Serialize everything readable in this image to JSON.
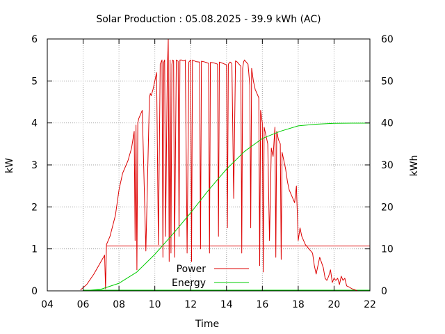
{
  "chart_data": {
    "type": "line",
    "title": "Solar Production : 05.08.2025 - 39.9 kWh (AC)",
    "xlabel": "Time",
    "ylabel": "kW",
    "y2label": "kWh",
    "xlim": [
      4,
      22
    ],
    "ylim": [
      0,
      6
    ],
    "y2lim": [
      0,
      60
    ],
    "x_ticks": [
      "04",
      "06",
      "08",
      "10",
      "12",
      "14",
      "16",
      "18",
      "20",
      "22"
    ],
    "y_ticks": [
      "0",
      "1",
      "2",
      "3",
      "4",
      "5",
      "6"
    ],
    "y2_ticks": [
      "0",
      "10",
      "20",
      "30",
      "40",
      "50",
      "60"
    ],
    "grid": true,
    "legend_position": "bottom-left",
    "reference_line": {
      "y": 1.07,
      "color": "#dd0000"
    },
    "baseline": {
      "y2": 0.0,
      "color": "#00cc00"
    },
    "series": [
      {
        "name": "Power",
        "axis": "y",
        "color": "#dd0000",
        "x": [
          5.85,
          6.2,
          6.6,
          7.0,
          7.2,
          7.25,
          7.3,
          7.5,
          7.8,
          8.0,
          8.2,
          8.5,
          8.7,
          8.85,
          8.9,
          8.95,
          9.0,
          9.05,
          9.1,
          9.2,
          9.3,
          9.5,
          9.7,
          9.75,
          9.8,
          9.9,
          10.0,
          10.1,
          10.2,
          10.3,
          10.4,
          10.45,
          10.5,
          10.55,
          10.6,
          10.7,
          10.75,
          10.8,
          10.85,
          10.9,
          10.95,
          11.0,
          11.05,
          11.1,
          11.2,
          11.3,
          11.35,
          11.4,
          11.5,
          11.6,
          11.7,
          11.8,
          11.9,
          12.0,
          12.05,
          12.1,
          12.3,
          12.5,
          12.55,
          12.6,
          12.8,
          13.0,
          13.05,
          13.1,
          13.3,
          13.5,
          13.55,
          13.6,
          13.8,
          13.9,
          14.0,
          14.05,
          14.1,
          14.2,
          14.3,
          14.4,
          14.5,
          14.6,
          14.7,
          14.8,
          14.85,
          14.9,
          14.95,
          15.0,
          15.1,
          15.2,
          15.3,
          15.35,
          15.4,
          15.5,
          15.6,
          15.7,
          15.8,
          15.85,
          15.9,
          16.0,
          16.05,
          16.1,
          16.2,
          16.3,
          16.4,
          16.5,
          16.6,
          16.7,
          16.75,
          16.8,
          16.9,
          17.0,
          17.05,
          17.1,
          17.2,
          17.3,
          17.4,
          17.5,
          17.6,
          17.7,
          17.8,
          17.9,
          18.0,
          18.1,
          18.2,
          18.4,
          18.6,
          18.8,
          18.9,
          19.0,
          19.2,
          19.4,
          19.5,
          19.6,
          19.7,
          19.8,
          19.9,
          20.0,
          20.1,
          20.2,
          20.3,
          20.4,
          20.5,
          20.6,
          20.7,
          20.8,
          21.0,
          21.2,
          21.3
        ],
        "y": [
          0.02,
          0.15,
          0.4,
          0.7,
          0.85,
          0.05,
          1.1,
          1.3,
          1.8,
          2.4,
          2.8,
          3.1,
          3.4,
          3.8,
          1.2,
          3.95,
          0.5,
          4.0,
          4.1,
          4.2,
          4.3,
          0.95,
          4.6,
          4.7,
          4.65,
          4.8,
          5.0,
          5.2,
          1.1,
          5.4,
          5.5,
          0.8,
          5.45,
          5.5,
          1.3,
          5.3,
          6.0,
          0.7,
          5.5,
          0.9,
          5.4,
          5.5,
          5.48,
          0.8,
          5.5,
          5.47,
          1.3,
          5.5,
          5.5,
          5.48,
          5.5,
          0.9,
          5.45,
          5.5,
          0.7,
          5.5,
          5.46,
          5.45,
          1.0,
          5.47,
          5.45,
          5.42,
          0.9,
          5.44,
          5.43,
          5.4,
          1.3,
          5.45,
          5.42,
          5.4,
          5.38,
          1.5,
          5.4,
          5.45,
          5.42,
          2.2,
          5.48,
          5.45,
          5.4,
          5.35,
          0.9,
          5.3,
          5.45,
          5.5,
          5.45,
          5.4,
          4.9,
          1.5,
          5.3,
          5.0,
          4.8,
          4.7,
          4.6,
          0.6,
          4.3,
          4.0,
          0.45,
          3.9,
          3.7,
          3.5,
          1.2,
          3.4,
          3.2,
          3.9,
          0.8,
          3.8,
          3.6,
          3.5,
          0.75,
          3.3,
          3.1,
          2.9,
          2.6,
          2.4,
          2.3,
          2.2,
          2.1,
          2.5,
          1.2,
          1.5,
          1.3,
          1.1,
          1.0,
          0.9,
          0.6,
          0.4,
          0.8,
          0.55,
          0.3,
          0.25,
          0.35,
          0.5,
          0.2,
          0.3,
          0.25,
          0.3,
          0.15,
          0.35,
          0.25,
          0.3,
          0.12,
          0.1,
          0.05,
          0.02,
          0.0
        ]
      },
      {
        "name": "Energy",
        "axis": "y2",
        "color": "#00cc00",
        "x": [
          6.0,
          7.0,
          8.0,
          9.0,
          10.0,
          11.0,
          12.0,
          13.0,
          14.0,
          15.0,
          16.0,
          17.0,
          18.0,
          19.0,
          20.0,
          21.0,
          22.0
        ],
        "y": [
          0.0,
          0.4,
          1.8,
          4.5,
          8.7,
          13.5,
          18.6,
          24.0,
          29.0,
          33.2,
          36.3,
          38.0,
          39.3,
          39.7,
          39.9,
          39.95,
          39.95
        ]
      }
    ]
  }
}
